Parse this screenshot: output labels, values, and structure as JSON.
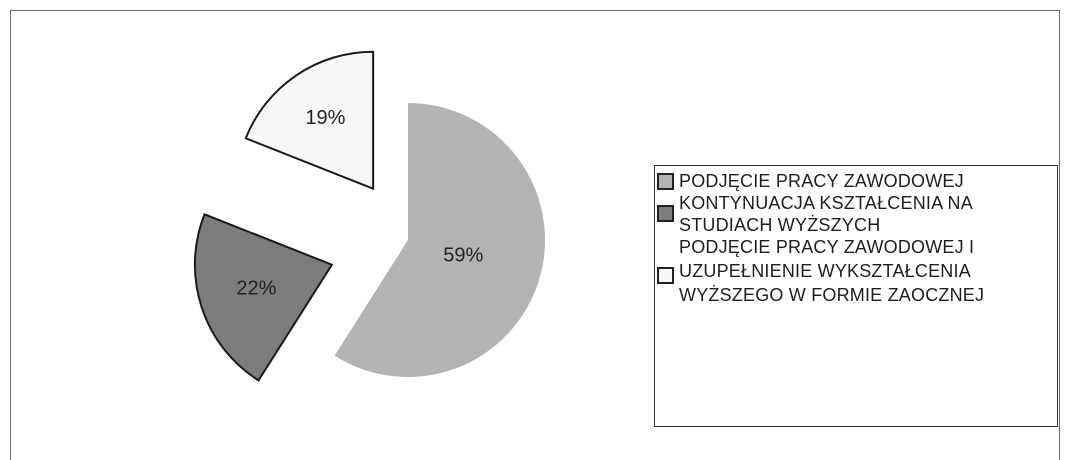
{
  "chart_data": {
    "type": "pie",
    "slices": [
      {
        "label": "PODJĘCIE PRACY ZAWODOWEJ",
        "value": 59,
        "value_label": "59%",
        "color": "#b3b3b3",
        "exploded": true
      },
      {
        "label": "KONTYNUACJA KSZTAŁCENIA NA STUDIACH WYŻSZYCH",
        "value": 22,
        "value_label": "22%",
        "color": "#7d7d7d",
        "exploded": true
      },
      {
        "label": "PODJĘCIE PRACY ZAWODOWEJ I UZUPEŁNIENIE WYKSZTAŁCENIA WYŻSZEGO W FORMIE ZAOCZNEJ",
        "value": 19,
        "value_label": "19%",
        "color": "#f7f7f7",
        "exploded": true
      }
    ],
    "legend": {
      "placement": "right",
      "entries": [
        {
          "lines": [
            "PODJĘCIE PRACY ZAWODOWEJ"
          ],
          "color": "#b3b3b3"
        },
        {
          "lines": [
            "KONTYNUACJA KSZTAŁCENIA NA",
            "STUDIACH WYŻSZYCH"
          ],
          "color": "#7d7d7d"
        },
        {
          "lines": [
            "PODJĘCIE PRACY ZAWODOWEJ I",
            "UZUPEŁNIENIE WYKSZTAŁCENIA",
            "WYŻSZEGO W FORMIE ZAOCZNEJ"
          ],
          "color": "#f7f7f7"
        }
      ]
    }
  }
}
